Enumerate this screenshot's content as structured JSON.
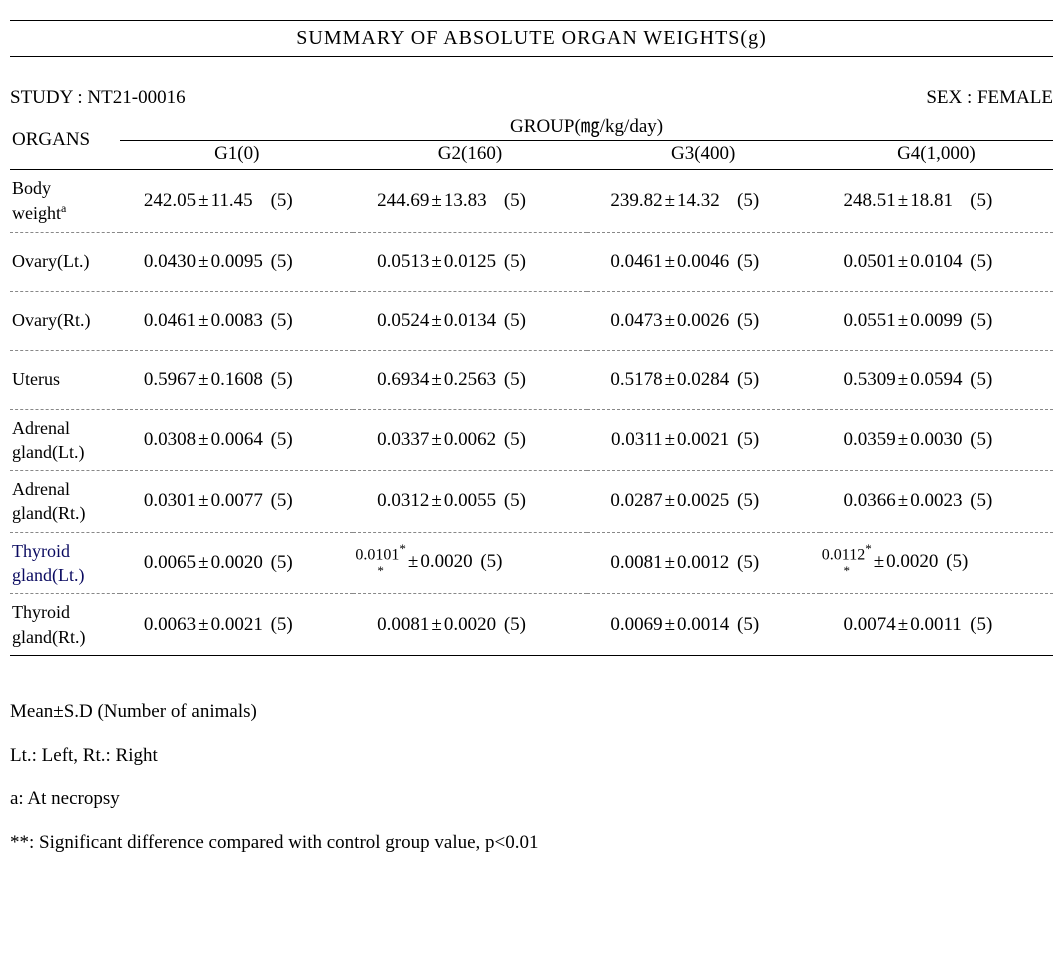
{
  "title": "SUMMARY OF ABSOLUTE ORGAN WEIGHTS(g)",
  "study_label": "STUDY : NT21-00016",
  "sex_label": "SEX : FEMALE",
  "organs_header": "ORGANS",
  "group_header": "GROUP(㎎/kg/day)",
  "groups": [
    "G1(0)",
    "G2(160)",
    "G3(400)",
    "G4(1,000)"
  ],
  "rows": [
    {
      "label_html": "Body<br>weight<span class='sup'>a</span>",
      "cells": [
        {
          "mean": "242.05",
          "pm": "±",
          "sd": "11.45",
          "n": "(5)",
          "mean_star": ""
        },
        {
          "mean": "244.69",
          "pm": "±",
          "sd": "13.83",
          "n": "(5)",
          "mean_star": ""
        },
        {
          "mean": "239.82",
          "pm": "±",
          "sd": "14.32",
          "n": "(5)",
          "mean_star": ""
        },
        {
          "mean": "248.51",
          "pm": "±",
          "sd": "18.81",
          "n": "(5)",
          "mean_star": ""
        }
      ],
      "border": "dashed"
    },
    {
      "label_html": "Ovary(Lt.)",
      "cells": [
        {
          "mean": "0.0430",
          "pm": "±",
          "sd": "0.0095",
          "n": "(5)",
          "mean_star": ""
        },
        {
          "mean": "0.0513",
          "pm": "±",
          "sd": "0.0125",
          "n": "(5)",
          "mean_star": ""
        },
        {
          "mean": "0.0461",
          "pm": "±",
          "sd": "0.0046",
          "n": "(5)",
          "mean_star": ""
        },
        {
          "mean": "0.0501",
          "pm": "±",
          "sd": "0.0104",
          "n": "(5)",
          "mean_star": ""
        }
      ],
      "border": "dashed",
      "tall": true
    },
    {
      "label_html": "Ovary(Rt.)",
      "cells": [
        {
          "mean": "0.0461",
          "pm": "±",
          "sd": "0.0083",
          "n": "(5)",
          "mean_star": ""
        },
        {
          "mean": "0.0524",
          "pm": "±",
          "sd": "0.0134",
          "n": "(5)",
          "mean_star": ""
        },
        {
          "mean": "0.0473",
          "pm": "±",
          "sd": "0.0026",
          "n": "(5)",
          "mean_star": ""
        },
        {
          "mean": "0.0551",
          "pm": "±",
          "sd": "0.0099",
          "n": "(5)",
          "mean_star": ""
        }
      ],
      "border": "dashed",
      "tall": true
    },
    {
      "label_html": "Uterus",
      "cells": [
        {
          "mean": "0.5967",
          "pm": "±",
          "sd": "0.1608",
          "n": "(5)",
          "mean_star": ""
        },
        {
          "mean": "0.6934",
          "pm": "±",
          "sd": "0.2563",
          "n": "(5)",
          "mean_star": ""
        },
        {
          "mean": "0.5178",
          "pm": "±",
          "sd": "0.0284",
          "n": "(5)",
          "mean_star": ""
        },
        {
          "mean": "0.5309",
          "pm": "±",
          "sd": "0.0594",
          "n": "(5)",
          "mean_star": ""
        }
      ],
      "border": "dashed",
      "tall": true
    },
    {
      "label_html": "Adrenal<br>gland(Lt.)",
      "cells": [
        {
          "mean": "0.0308",
          "pm": "±",
          "sd": "0.0064",
          "n": "(5)",
          "mean_star": ""
        },
        {
          "mean": "0.0337",
          "pm": "±",
          "sd": "0.0062",
          "n": "(5)",
          "mean_star": ""
        },
        {
          "mean": "0.0311",
          "pm": "±",
          "sd": "0.0021",
          "n": "(5)",
          "mean_star": ""
        },
        {
          "mean": "0.0359",
          "pm": "±",
          "sd": "0.0030",
          "n": "(5)",
          "mean_star": ""
        }
      ],
      "border": "dashed"
    },
    {
      "label_html": "Adrenal<br>gland(Rt.)",
      "cells": [
        {
          "mean": "0.0301",
          "pm": "±",
          "sd": "0.0077",
          "n": "(5)",
          "mean_star": ""
        },
        {
          "mean": "0.0312",
          "pm": "±",
          "sd": "0.0055",
          "n": "(5)",
          "mean_star": ""
        },
        {
          "mean": "0.0287",
          "pm": "±",
          "sd": "0.0025",
          "n": "(5)",
          "mean_star": ""
        },
        {
          "mean": "0.0366",
          "pm": "±",
          "sd": "0.0023",
          "n": "(5)",
          "mean_star": ""
        }
      ],
      "border": "dashed"
    },
    {
      "label_html": "<span class='thyroid-lt-label'>Thyroid<br>gland(Lt.)</span>",
      "cells": [
        {
          "mean": "0.0065",
          "pm": "±",
          "sd": "0.0020",
          "n": "(5)",
          "mean_star": ""
        },
        {
          "mean": "0.0101",
          "pm": "±",
          "sd": "0.0020",
          "n": "(5)",
          "mean_star": "**"
        },
        {
          "mean": "0.0081",
          "pm": "±",
          "sd": "0.0012",
          "n": "(5)",
          "mean_star": ""
        },
        {
          "mean": "0.0112",
          "pm": "±",
          "sd": "0.0020",
          "n": "(5)",
          "mean_star": "**"
        }
      ],
      "border": "dashed"
    },
    {
      "label_html": "Thyroid<br>gland(Rt.)",
      "cells": [
        {
          "mean": "0.0063",
          "pm": "±",
          "sd": "0.0021",
          "n": "(5)",
          "mean_star": ""
        },
        {
          "mean": "0.0081",
          "pm": "±",
          "sd": "0.0020",
          "n": "(5)",
          "mean_star": ""
        },
        {
          "mean": "0.0069",
          "pm": "±",
          "sd": "0.0014",
          "n": "(5)",
          "mean_star": ""
        },
        {
          "mean": "0.0074",
          "pm": "±",
          "sd": "0.0011",
          "n": "(5)",
          "mean_star": ""
        }
      ],
      "border": "solid"
    }
  ],
  "footnotes": [
    "Mean±S.D (Number of animals)",
    "Lt.: Left, Rt.: Right",
    "a: At necropsy",
    "**: Significant difference compared with control group value, p<0.01"
  ],
  "colors": {
    "text": "#000000",
    "bg": "#ffffff",
    "dash": "#888888",
    "thyroid_lt": "#0a0a60"
  }
}
